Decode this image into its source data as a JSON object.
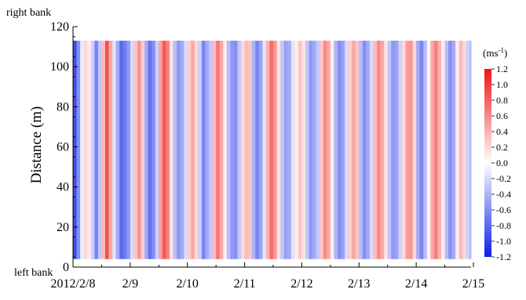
{
  "chart_data": {
    "type": "heatmap",
    "title": "",
    "xlabel": "",
    "ylabel": "Distance (m)",
    "x_ticks": [
      "2012/2/8",
      "2/9",
      "2/10",
      "2/11",
      "2/12",
      "2/13",
      "2/14",
      "2/15"
    ],
    "x_range_days": [
      0,
      7
    ],
    "y_ticks": [
      "0",
      "20",
      "40",
      "60",
      "80",
      "100",
      "120"
    ],
    "ylim": [
      0,
      120
    ],
    "data_y_extent": [
      4,
      113
    ],
    "annotations": {
      "top": "right bank",
      "bottom": "left bank"
    },
    "colorbar": {
      "unit_base": "(ms",
      "unit_exp": "-1",
      "unit_close": ")",
      "min": -1.2,
      "max": 1.2,
      "ticks": [
        "1.2",
        "1.0",
        "0.8",
        "0.6",
        "0.4",
        "0.2",
        "0.0",
        "-0.2",
        "-0.4",
        "-0.6",
        "-0.8",
        "-1.0",
        "-1.2"
      ],
      "colors": {
        "negative": "#0a1ee6",
        "zero": "#ffffff",
        "positive": "#ee1515"
      }
    },
    "time_series": {
      "sample_interval_days": 0.0625,
      "values": [
        -0.95,
        -0.6,
        -0.1,
        0.2,
        0.1,
        -0.25,
        -0.65,
        -0.3,
        0.35,
        0.9,
        0.45,
        -0.15,
        -0.45,
        -0.8,
        -0.7,
        -0.55,
        -0.2,
        0.3,
        0.55,
        0.25,
        -0.45,
        -0.75,
        -0.6,
        -0.25,
        0.5,
        0.85,
        0.65,
        0.15,
        -0.35,
        -0.55,
        -0.45,
        -0.2,
        0.25,
        0.45,
        0.2,
        -0.25,
        -0.65,
        -0.45,
        -0.3,
        0.35,
        0.7,
        0.45,
        0.1,
        -0.35,
        -0.55,
        -0.6,
        -0.3,
        0.2,
        0.35,
        0.3,
        -0.4,
        -0.65,
        -0.5,
        -0.15,
        0.4,
        0.75,
        0.55,
        0.15,
        -0.3,
        -0.5,
        -0.45,
        -0.15,
        0.1,
        0.3,
        0.15,
        -0.3,
        -0.55,
        -0.45,
        -0.3,
        0.3,
        0.6,
        0.45,
        0.1,
        -0.4,
        -0.6,
        -0.5,
        -0.2,
        0.25,
        0.45,
        0.3,
        -0.35,
        -0.6,
        -0.45,
        -0.2,
        0.35,
        0.6,
        0.45,
        0.15,
        -0.3,
        -0.55,
        -0.5,
        -0.25,
        0.2,
        0.5,
        0.55,
        0.2,
        -0.45,
        -0.65,
        -0.35,
        0.05,
        0.45,
        0.65,
        0.4,
        0.1,
        -0.35,
        -0.6,
        -0.45,
        0.1,
        0.35,
        0.2,
        -0.25,
        -0.4,
        -0.15
      ]
    }
  }
}
